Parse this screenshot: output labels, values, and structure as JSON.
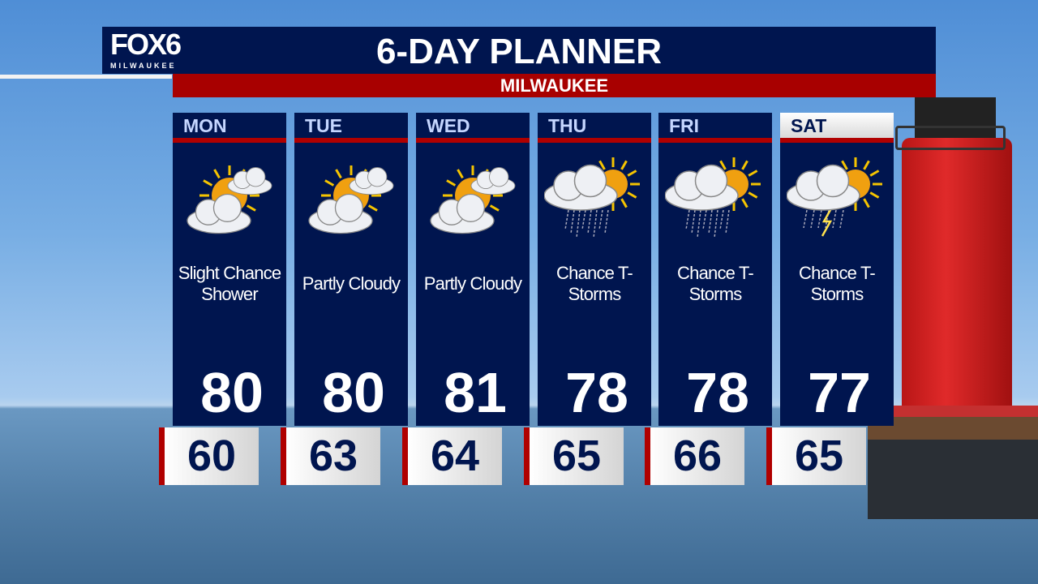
{
  "header": {
    "logo": "FOX6",
    "logo_sub": "MILWAUKEE",
    "title": "6-DAY PLANNER",
    "location": "MILWAUKEE"
  },
  "colors": {
    "navy": "#00154f",
    "red": "#a80000"
  },
  "days": [
    {
      "day": "MON",
      "condition": "Slight Chance Shower",
      "icon": "partly-cloudy-icon",
      "high": "80",
      "low": "60"
    },
    {
      "day": "TUE",
      "condition": "Partly Cloudy",
      "icon": "partly-cloudy-icon",
      "high": "80",
      "low": "63"
    },
    {
      "day": "WED",
      "condition": "Partly Cloudy",
      "icon": "partly-cloudy-icon",
      "high": "81",
      "low": "64"
    },
    {
      "day": "THU",
      "condition": "Chance T-Storms",
      "icon": "rain-sun-icon",
      "high": "78",
      "low": "65"
    },
    {
      "day": "FRI",
      "condition": "Chance T-Storms",
      "icon": "rain-sun-icon",
      "high": "78",
      "low": "66"
    },
    {
      "day": "SAT",
      "condition": "Chance T-Storms",
      "icon": "thunderstorm-sun-icon",
      "high": "77",
      "low": "65"
    }
  ]
}
